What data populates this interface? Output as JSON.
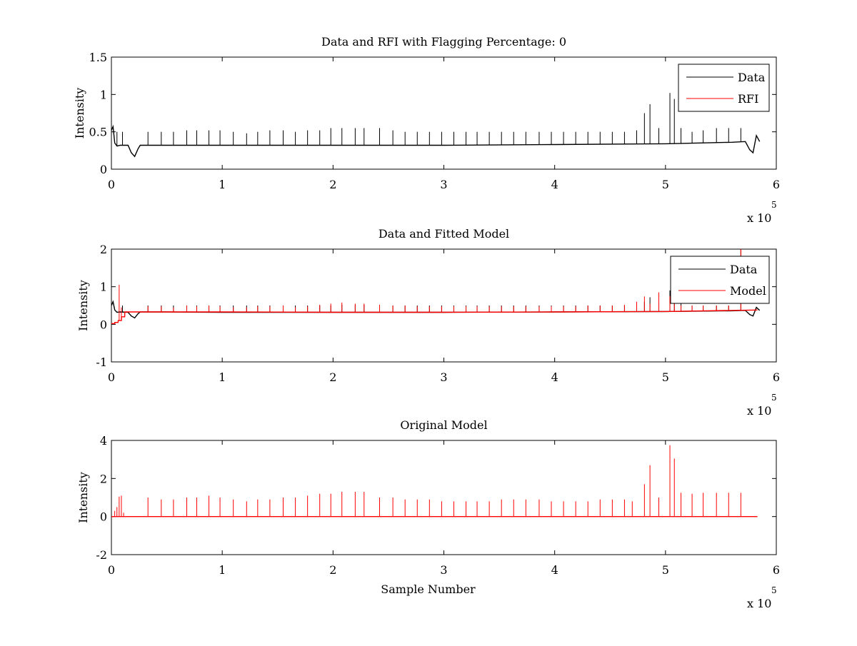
{
  "figure": {
    "background": "#ffffff",
    "data_color": "#000000",
    "model_color": "#ff0000"
  },
  "chart_data": [
    {
      "type": "line",
      "title": "Data and RFI with Flagging Percentage: 0",
      "xlabel": "",
      "ylabel": "Intensity",
      "xlim": [
        0,
        600000
      ],
      "ylim": [
        0,
        1.5
      ],
      "x_ticks": [
        "0",
        "1",
        "2",
        "3",
        "4",
        "5",
        "6"
      ],
      "y_ticks": [
        "0",
        "0.5",
        "1",
        "1.5"
      ],
      "x_multiplier": "x 10",
      "x_multiplier_exp": "5",
      "legend": {
        "position": "top-right",
        "entries": [
          "Data",
          "RFI"
        ]
      },
      "series": [
        {
          "name": "Data",
          "color": "#000000",
          "baseline_x": [
            0,
            1500,
            3000,
            5000,
            8000,
            15000,
            18000,
            21000,
            24000,
            26000,
            50000,
            100000,
            150000,
            200000,
            300000,
            400000,
            500000,
            560000,
            572000,
            576000,
            579000,
            582000,
            585000
          ],
          "baseline_y": [
            0.52,
            0.57,
            0.35,
            0.31,
            0.32,
            0.32,
            0.22,
            0.17,
            0.27,
            0.32,
            0.32,
            0.32,
            0.32,
            0.32,
            0.32,
            0.33,
            0.34,
            0.36,
            0.37,
            0.26,
            0.22,
            0.45,
            0.37
          ],
          "spikes_x": [
            5000,
            10000,
            33000,
            45000,
            56000,
            68000,
            77000,
            88000,
            98000,
            110000,
            122000,
            132000,
            143000,
            155000,
            166000,
            177000,
            188000,
            198000,
            208000,
            220000,
            228000,
            242000,
            254000,
            265000,
            276000,
            287000,
            298000,
            309000,
            320000,
            330000,
            341000,
            352000,
            363000,
            374000,
            386000,
            397000,
            408000,
            419000,
            430000,
            441000,
            452000,
            463000,
            474000,
            481000,
            486000,
            494000,
            504000,
            508000,
            514000,
            524000,
            534000,
            546000,
            557000,
            568000
          ],
          "spikes_y": [
            0.5,
            0.5,
            0.5,
            0.5,
            0.5,
            0.52,
            0.52,
            0.52,
            0.52,
            0.5,
            0.48,
            0.5,
            0.52,
            0.52,
            0.5,
            0.52,
            0.52,
            0.55,
            0.55,
            0.55,
            0.55,
            0.55,
            0.52,
            0.5,
            0.5,
            0.5,
            0.5,
            0.5,
            0.5,
            0.5,
            0.5,
            0.5,
            0.5,
            0.5,
            0.5,
            0.5,
            0.5,
            0.5,
            0.5,
            0.5,
            0.5,
            0.5,
            0.52,
            0.75,
            0.87,
            0.55,
            1.02,
            0.94,
            0.55,
            0.5,
            0.52,
            0.55,
            0.55,
            0.55
          ]
        },
        {
          "name": "RFI",
          "color": "#ff0000",
          "baseline_x": [],
          "baseline_y": [],
          "spikes_x": [],
          "spikes_y": []
        }
      ]
    },
    {
      "type": "line",
      "title": "Data and Fitted Model",
      "xlabel": "",
      "ylabel": "Intensity",
      "xlim": [
        0,
        600000
      ],
      "ylim": [
        -1,
        2
      ],
      "x_ticks": [
        "0",
        "1",
        "2",
        "3",
        "4",
        "5",
        "6"
      ],
      "y_ticks": [
        "-1",
        "0",
        "1",
        "2"
      ],
      "x_multiplier": "x 10",
      "x_multiplier_exp": "5",
      "legend": {
        "position": "top-right",
        "entries": [
          "Data",
          "Model"
        ]
      },
      "series": [
        {
          "name": "Data",
          "color": "#000000",
          "baseline_x": [
            0,
            1500,
            3000,
            5000,
            8000,
            15000,
            18000,
            21000,
            24000,
            26000,
            50000,
            100000,
            150000,
            200000,
            300000,
            400000,
            500000,
            560000,
            572000,
            576000,
            579000,
            582000,
            585000
          ],
          "baseline_y": [
            0.5,
            0.6,
            0.38,
            0.32,
            0.33,
            0.32,
            0.22,
            0.17,
            0.28,
            0.33,
            0.33,
            0.32,
            0.32,
            0.32,
            0.32,
            0.33,
            0.34,
            0.36,
            0.37,
            0.26,
            0.22,
            0.45,
            0.37
          ],
          "spikes_x": [
            10000,
            33000,
            45000,
            56000,
            68000,
            77000,
            88000,
            98000,
            110000,
            122000,
            132000,
            143000,
            155000,
            166000,
            177000,
            188000,
            198000,
            208000,
            220000,
            228000,
            242000,
            254000,
            265000,
            276000,
            287000,
            298000,
            309000,
            320000,
            330000,
            341000,
            352000,
            363000,
            374000,
            386000,
            397000,
            408000,
            419000,
            430000,
            441000,
            452000,
            463000,
            474000,
            481000,
            486000,
            494000,
            504000,
            508000,
            514000,
            524000,
            534000,
            546000,
            557000,
            568000
          ],
          "spikes_y": [
            0.5,
            0.5,
            0.5,
            0.5,
            0.5,
            0.5,
            0.5,
            0.5,
            0.5,
            0.5,
            0.5,
            0.5,
            0.5,
            0.5,
            0.5,
            0.5,
            0.5,
            0.52,
            0.52,
            0.52,
            0.52,
            0.5,
            0.5,
            0.5,
            0.5,
            0.5,
            0.5,
            0.5,
            0.5,
            0.5,
            0.5,
            0.5,
            0.5,
            0.5,
            0.5,
            0.5,
            0.5,
            0.5,
            0.5,
            0.5,
            0.5,
            0.5,
            0.6,
            0.72,
            0.55,
            0.9,
            0.85,
            0.55,
            0.5,
            0.5,
            0.5,
            0.5
          ]
        },
        {
          "name": "Model",
          "color": "#ff0000",
          "baseline_x": [
            0,
            3000,
            3100,
            6000,
            6100,
            9000,
            9100,
            12000,
            12100,
            30000,
            100000,
            200000,
            300000,
            400000,
            500000,
            583000
          ],
          "baseline_y": [
            0.02,
            0.02,
            0.05,
            0.05,
            0.1,
            0.1,
            0.2,
            0.2,
            0.33,
            0.33,
            0.33,
            0.32,
            0.32,
            0.33,
            0.34,
            0.38
          ],
          "spikes_x": [
            7000,
            9000,
            33000,
            45000,
            56000,
            68000,
            77000,
            88000,
            98000,
            110000,
            122000,
            132000,
            143000,
            155000,
            166000,
            177000,
            188000,
            198000,
            208000,
            220000,
            228000,
            242000,
            254000,
            265000,
            276000,
            287000,
            298000,
            309000,
            320000,
            330000,
            341000,
            352000,
            363000,
            374000,
            386000,
            397000,
            408000,
            419000,
            430000,
            441000,
            452000,
            463000,
            474000,
            481000,
            486000,
            494000,
            504000,
            508000,
            514000,
            524000,
            534000,
            546000,
            557000,
            568000
          ],
          "spikes_y": [
            1.05,
            0.45,
            0.48,
            0.48,
            0.45,
            0.5,
            0.48,
            0.5,
            0.48,
            0.45,
            0.45,
            0.48,
            0.48,
            0.5,
            0.45,
            0.48,
            0.52,
            0.55,
            0.58,
            0.55,
            0.55,
            0.52,
            0.5,
            0.5,
            0.48,
            0.48,
            0.48,
            0.48,
            0.48,
            0.48,
            0.48,
            0.48,
            0.48,
            0.48,
            0.48,
            0.48,
            0.48,
            0.48,
            0.5,
            0.5,
            0.5,
            0.52,
            0.6,
            0.74,
            0.55,
            0.85,
            0.75,
            0.55,
            0.5,
            0.5,
            0.5,
            0.5,
            0.5
          ]
        }
      ]
    },
    {
      "type": "line",
      "title": "Original Model",
      "xlabel": "Sample Number",
      "ylabel": "Intensity",
      "xlim": [
        0,
        600000
      ],
      "ylim": [
        -2,
        4
      ],
      "x_ticks": [
        "0",
        "1",
        "2",
        "3",
        "4",
        "5",
        "6"
      ],
      "y_ticks": [
        "-2",
        "0",
        "2",
        "4"
      ],
      "x_multiplier": "x 10",
      "x_multiplier_exp": "5",
      "legend": null,
      "series": [
        {
          "name": "",
          "color": "#ff0000",
          "baseline_x": [
            0,
            583000
          ],
          "baseline_y": [
            0,
            0
          ],
          "spikes_x": [
            3000,
            5000,
            7000,
            9000,
            11000,
            33000,
            45000,
            56000,
            68000,
            77000,
            88000,
            98000,
            110000,
            122000,
            132000,
            143000,
            155000,
            166000,
            177000,
            188000,
            198000,
            208000,
            220000,
            228000,
            242000,
            254000,
            265000,
            276000,
            287000,
            298000,
            309000,
            320000,
            330000,
            341000,
            352000,
            363000,
            374000,
            386000,
            397000,
            408000,
            419000,
            430000,
            441000,
            452000,
            463000,
            470000,
            481000,
            486000,
            494000,
            504000,
            508000,
            514000,
            524000,
            534000,
            546000,
            557000,
            568000
          ],
          "spikes_y": [
            0.3,
            0.5,
            1.05,
            1.1,
            0.2,
            1.0,
            0.9,
            0.9,
            1.0,
            1.0,
            1.1,
            1.0,
            0.9,
            0.8,
            0.9,
            0.9,
            1.0,
            1.0,
            1.1,
            1.2,
            1.2,
            1.3,
            1.3,
            1.3,
            1.0,
            1.0,
            0.9,
            0.9,
            0.9,
            0.8,
            0.8,
            0.8,
            0.8,
            0.8,
            0.9,
            0.9,
            0.9,
            0.9,
            0.8,
            0.8,
            0.8,
            0.8,
            0.9,
            0.9,
            0.9,
            0.8,
            1.7,
            2.7,
            1.0,
            3.75,
            3.05,
            1.25,
            1.2,
            1.25,
            1.25,
            1.25,
            1.25
          ]
        }
      ]
    }
  ]
}
